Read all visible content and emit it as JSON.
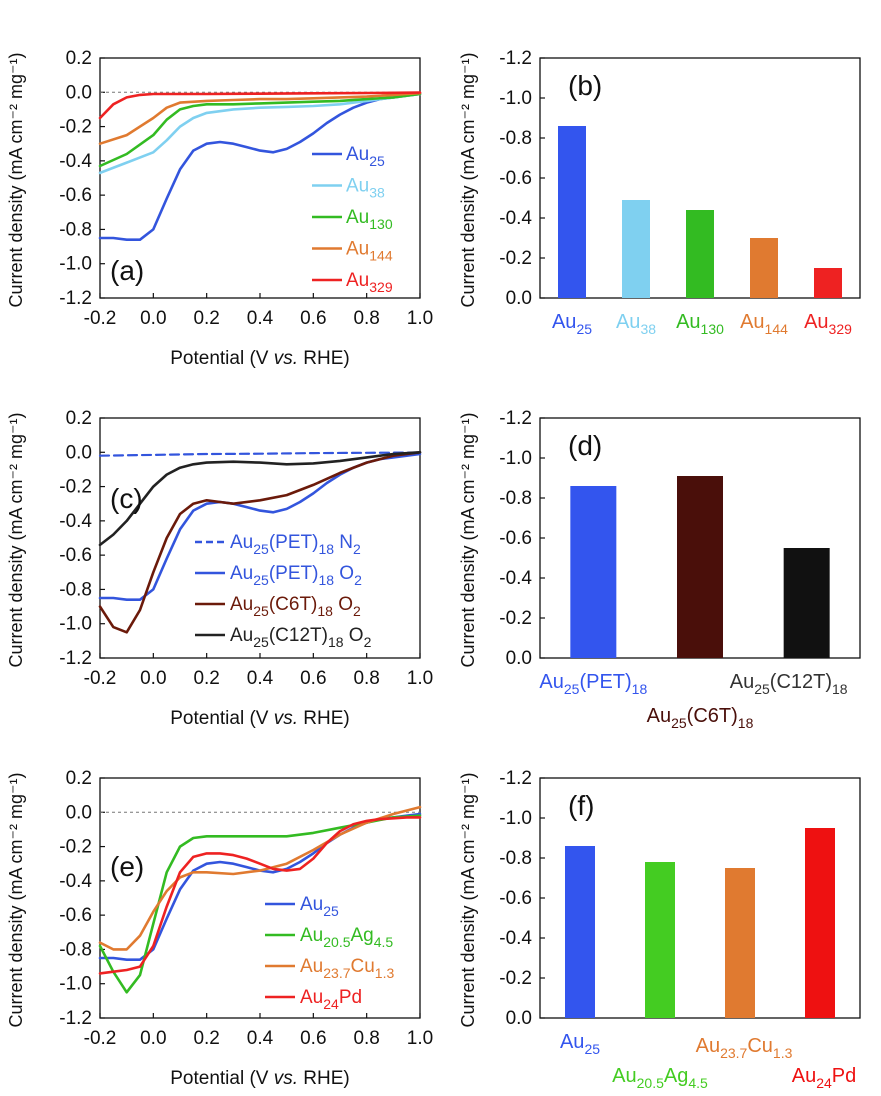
{
  "chart_data": [
    {
      "panel": "(a)",
      "type": "line",
      "xlabel": "Potential (V vs. RHE)",
      "xlabel_italic": "vs.",
      "ylabel": "Current density (mA cm⁻² mg⁻¹)",
      "xlim": [
        -0.2,
        1.0
      ],
      "ylim": [
        -1.2,
        0.2
      ],
      "xticks": [
        "-0.2",
        "0.0",
        "0.2",
        "0.4",
        "0.6",
        "0.8",
        "1.0"
      ],
      "yticks": [
        "0.2",
        "0.0",
        "-0.2",
        "-0.4",
        "-0.6",
        "-0.8",
        "-1.0",
        "-1.2"
      ],
      "zero_line": true,
      "series": [
        {
          "name": "Au",
          "sub": "25",
          "color": "#3355dd",
          "x": [
            -0.2,
            -0.15,
            -0.1,
            -0.05,
            0.0,
            0.05,
            0.1,
            0.15,
            0.2,
            0.25,
            0.3,
            0.35,
            0.4,
            0.45,
            0.5,
            0.55,
            0.6,
            0.65,
            0.7,
            0.75,
            0.8,
            0.85,
            0.9,
            0.95,
            1.0
          ],
          "y": [
            -0.85,
            -0.85,
            -0.86,
            -0.86,
            -0.8,
            -0.62,
            -0.45,
            -0.34,
            -0.3,
            -0.29,
            -0.3,
            -0.32,
            -0.34,
            -0.35,
            -0.33,
            -0.29,
            -0.24,
            -0.18,
            -0.13,
            -0.09,
            -0.06,
            -0.04,
            -0.03,
            -0.02,
            -0.01
          ]
        },
        {
          "name": "Au",
          "sub": "38",
          "color": "#7fd0f0",
          "x": [
            -0.2,
            -0.1,
            0.0,
            0.05,
            0.1,
            0.15,
            0.2,
            0.3,
            0.4,
            0.5,
            0.6,
            0.7,
            0.8,
            0.9,
            1.0
          ],
          "y": [
            -0.47,
            -0.41,
            -0.35,
            -0.28,
            -0.2,
            -0.15,
            -0.12,
            -0.1,
            -0.09,
            -0.085,
            -0.08,
            -0.07,
            -0.05,
            -0.03,
            -0.01
          ]
        },
        {
          "name": "Au",
          "sub": "130",
          "color": "#33bb22",
          "x": [
            -0.2,
            -0.1,
            0.0,
            0.05,
            0.1,
            0.15,
            0.2,
            0.3,
            0.4,
            0.5,
            0.6,
            0.7,
            0.8,
            0.9,
            1.0
          ],
          "y": [
            -0.43,
            -0.36,
            -0.25,
            -0.16,
            -0.1,
            -0.08,
            -0.07,
            -0.07,
            -0.065,
            -0.06,
            -0.055,
            -0.05,
            -0.04,
            -0.03,
            -0.01
          ]
        },
        {
          "name": "Au",
          "sub": "144",
          "color": "#e07a30",
          "x": [
            -0.2,
            -0.1,
            0.0,
            0.05,
            0.1,
            0.2,
            0.3,
            0.4,
            0.5,
            0.6,
            0.7,
            0.8,
            0.9,
            1.0
          ],
          "y": [
            -0.3,
            -0.25,
            -0.15,
            -0.09,
            -0.06,
            -0.05,
            -0.045,
            -0.04,
            -0.04,
            -0.035,
            -0.03,
            -0.025,
            -0.015,
            -0.005
          ]
        },
        {
          "name": "Au",
          "sub": "329",
          "color": "#ee2222",
          "x": [
            -0.2,
            -0.15,
            -0.1,
            -0.05,
            0.0,
            0.1,
            0.2,
            0.4,
            0.6,
            0.8,
            1.0
          ],
          "y": [
            -0.15,
            -0.07,
            -0.03,
            -0.015,
            -0.01,
            -0.01,
            -0.01,
            -0.008,
            -0.006,
            -0.004,
            -0.002
          ]
        }
      ]
    },
    {
      "panel": "(b)",
      "type": "bar",
      "ylabel": "Current density (mA cm⁻² mg⁻¹)",
      "ylim": [
        0.0,
        -1.2
      ],
      "yticks": [
        "-1.2",
        "-1.0",
        "-0.8",
        "-0.6",
        "-0.4",
        "-0.2",
        "0.0"
      ],
      "categories": [
        {
          "name": "Au",
          "sub": "25"
        },
        {
          "name": "Au",
          "sub": "38"
        },
        {
          "name": "Au",
          "sub": "130"
        },
        {
          "name": "Au",
          "sub": "144"
        },
        {
          "name": "Au",
          "sub": "329"
        }
      ],
      "colors": [
        "#3355ee",
        "#7fd0f0",
        "#33bb22",
        "#e07a30",
        "#ee2222"
      ],
      "values": [
        -0.86,
        -0.49,
        -0.44,
        -0.3,
        -0.15
      ]
    },
    {
      "panel": "(c)",
      "type": "line",
      "xlabel": "Potential (V vs. RHE)",
      "xlabel_italic": "vs.",
      "ylabel": "Current density (mA cm⁻² mg⁻¹)",
      "xlim": [
        -0.2,
        1.0
      ],
      "ylim": [
        -1.2,
        0.2
      ],
      "xticks": [
        "-0.2",
        "0.0",
        "0.2",
        "0.4",
        "0.6",
        "0.8",
        "1.0"
      ],
      "yticks": [
        "0.2",
        "0.0",
        "-0.2",
        "-0.4",
        "-0.6",
        "-0.8",
        "-1.0",
        "-1.2"
      ],
      "zero_line": false,
      "series": [
        {
          "name": "Au",
          "sub": "25",
          "suffix": "(PET)",
          "sub2": "18",
          "gas": "N",
          "gas_sub": "2",
          "color": "#3355dd",
          "dashed": true,
          "x": [
            -0.2,
            0.0,
            0.2,
            0.4,
            0.6,
            0.8,
            1.0
          ],
          "y": [
            -0.02,
            -0.015,
            -0.01,
            -0.008,
            -0.005,
            -0.003,
            -0.001
          ]
        },
        {
          "name": "Au",
          "sub": "25",
          "suffix": "(PET)",
          "sub2": "18",
          "gas": "O",
          "gas_sub": "2",
          "color": "#3355dd",
          "dashed": false,
          "x": [
            -0.2,
            -0.15,
            -0.1,
            -0.05,
            0.0,
            0.05,
            0.1,
            0.15,
            0.2,
            0.25,
            0.3,
            0.35,
            0.4,
            0.45,
            0.5,
            0.55,
            0.6,
            0.65,
            0.7,
            0.75,
            0.8,
            0.85,
            0.9,
            0.95,
            1.0
          ],
          "y": [
            -0.85,
            -0.85,
            -0.86,
            -0.86,
            -0.8,
            -0.62,
            -0.45,
            -0.34,
            -0.3,
            -0.29,
            -0.3,
            -0.32,
            -0.34,
            -0.35,
            -0.33,
            -0.29,
            -0.24,
            -0.18,
            -0.13,
            -0.09,
            -0.06,
            -0.04,
            -0.03,
            -0.02,
            -0.01
          ]
        },
        {
          "name": "Au",
          "sub": "25",
          "suffix": "(C6T)",
          "sub2": "18",
          "gas": "O",
          "gas_sub": "2",
          "color": "#6b1a0a",
          "dashed": false,
          "x": [
            -0.2,
            -0.15,
            -0.1,
            -0.05,
            0.0,
            0.05,
            0.1,
            0.15,
            0.2,
            0.25,
            0.3,
            0.4,
            0.5,
            0.6,
            0.7,
            0.8,
            0.9,
            1.0
          ],
          "y": [
            -0.9,
            -1.02,
            -1.05,
            -0.92,
            -0.7,
            -0.5,
            -0.36,
            -0.3,
            -0.28,
            -0.29,
            -0.3,
            -0.28,
            -0.25,
            -0.19,
            -0.12,
            -0.06,
            -0.02,
            0.0
          ]
        },
        {
          "name": "Au",
          "sub": "25",
          "suffix": "(C12T)",
          "sub2": "18",
          "gas": "O",
          "gas_sub": "2",
          "color": "#222222",
          "dashed": false,
          "x": [
            -0.2,
            -0.15,
            -0.1,
            -0.05,
            0.0,
            0.05,
            0.1,
            0.15,
            0.2,
            0.3,
            0.4,
            0.5,
            0.6,
            0.7,
            0.8,
            0.9,
            1.0
          ],
          "y": [
            -0.54,
            -0.48,
            -0.4,
            -0.3,
            -0.2,
            -0.13,
            -0.09,
            -0.07,
            -0.06,
            -0.055,
            -0.06,
            -0.07,
            -0.065,
            -0.05,
            -0.03,
            -0.01,
            0.0
          ]
        }
      ]
    },
    {
      "panel": "(d)",
      "type": "bar",
      "ylabel": "Current density (mA cm⁻² mg⁻¹)",
      "ylim": [
        0.0,
        -1.2
      ],
      "yticks": [
        "-1.2",
        "-1.0",
        "-0.8",
        "-0.6",
        "-0.4",
        "-0.2",
        "0.0"
      ],
      "categories": [
        {
          "name": "Au",
          "sub": "25",
          "suffix": "(PET)",
          "sub2": "18"
        },
        {
          "name": "Au",
          "sub": "25",
          "suffix": "(C6T)",
          "sub2": "18"
        },
        {
          "name": "Au",
          "sub": "25",
          "suffix": "(C12T)",
          "sub2": "18"
        }
      ],
      "colors": [
        "#3355ee",
        "#4a0f0a",
        "#111111"
      ],
      "values": [
        -0.86,
        -0.91,
        -0.55
      ]
    },
    {
      "panel": "(e)",
      "type": "line",
      "xlabel": "Potential (V vs. RHE)",
      "xlabel_italic": "vs.",
      "ylabel": "Current density (mA cm⁻² mg⁻¹)",
      "xlim": [
        -0.2,
        1.0
      ],
      "ylim": [
        -1.2,
        0.2
      ],
      "xticks": [
        "-0.2",
        "0.0",
        "0.2",
        "0.4",
        "0.6",
        "0.8",
        "1.0"
      ],
      "yticks": [
        "0.2",
        "0.0",
        "-0.2",
        "-0.4",
        "-0.6",
        "-0.8",
        "-1.0",
        "-1.2"
      ],
      "zero_line": true,
      "series": [
        {
          "name": "Au",
          "sub": "25",
          "color": "#3355dd",
          "x": [
            -0.2,
            -0.15,
            -0.1,
            -0.05,
            0.0,
            0.05,
            0.1,
            0.15,
            0.2,
            0.25,
            0.3,
            0.35,
            0.4,
            0.45,
            0.5,
            0.55,
            0.6,
            0.65,
            0.7,
            0.75,
            0.8,
            0.85,
            0.9,
            0.95,
            1.0
          ],
          "y": [
            -0.85,
            -0.85,
            -0.86,
            -0.86,
            -0.8,
            -0.62,
            -0.45,
            -0.34,
            -0.3,
            -0.29,
            -0.3,
            -0.32,
            -0.34,
            -0.35,
            -0.33,
            -0.29,
            -0.24,
            -0.18,
            -0.13,
            -0.09,
            -0.06,
            -0.04,
            -0.03,
            -0.02,
            -0.01
          ]
        },
        {
          "name": "Au",
          "sub": "20.5",
          "mid": "Ag",
          "sub2": "4.5",
          "color": "#33bb22",
          "x": [
            -0.2,
            -0.15,
            -0.1,
            -0.05,
            0.0,
            0.05,
            0.1,
            0.15,
            0.2,
            0.3,
            0.4,
            0.5,
            0.6,
            0.7,
            0.8,
            0.9,
            1.0
          ],
          "y": [
            -0.78,
            -0.93,
            -1.05,
            -0.95,
            -0.65,
            -0.35,
            -0.2,
            -0.15,
            -0.14,
            -0.14,
            -0.14,
            -0.14,
            -0.12,
            -0.09,
            -0.06,
            -0.03,
            -0.02
          ]
        },
        {
          "name": "Au",
          "sub": "23.7",
          "mid": "Cu",
          "sub2": "1.3",
          "color": "#e07a30",
          "x": [
            -0.2,
            -0.15,
            -0.1,
            -0.05,
            0.0,
            0.05,
            0.1,
            0.15,
            0.2,
            0.3,
            0.4,
            0.5,
            0.6,
            0.7,
            0.8,
            0.9,
            1.0
          ],
          "y": [
            -0.76,
            -0.8,
            -0.8,
            -0.72,
            -0.58,
            -0.46,
            -0.38,
            -0.35,
            -0.35,
            -0.36,
            -0.34,
            -0.3,
            -0.22,
            -0.13,
            -0.06,
            -0.01,
            0.03
          ]
        },
        {
          "name": "Au",
          "sub": "24",
          "mid": "Pd",
          "sub2": "",
          "color": "#ee2222",
          "x": [
            -0.2,
            -0.15,
            -0.1,
            -0.05,
            0.0,
            0.05,
            0.1,
            0.15,
            0.2,
            0.25,
            0.3,
            0.35,
            0.4,
            0.45,
            0.5,
            0.55,
            0.6,
            0.65,
            0.7,
            0.75,
            0.8,
            0.85,
            0.9,
            0.95,
            1.0
          ],
          "y": [
            -0.94,
            -0.93,
            -0.92,
            -0.9,
            -0.78,
            -0.55,
            -0.35,
            -0.26,
            -0.24,
            -0.24,
            -0.25,
            -0.27,
            -0.3,
            -0.33,
            -0.34,
            -0.33,
            -0.27,
            -0.18,
            -0.11,
            -0.07,
            -0.05,
            -0.04,
            -0.035,
            -0.03,
            -0.03
          ]
        }
      ]
    },
    {
      "panel": "(f)",
      "type": "bar",
      "ylabel": "Current density (mA cm⁻² mg⁻¹)",
      "ylim": [
        0.0,
        -1.2
      ],
      "yticks": [
        "-1.2",
        "-1.0",
        "-0.8",
        "-0.6",
        "-0.4",
        "-0.2",
        "0.0"
      ],
      "categories": [
        {
          "name": "Au",
          "sub": "25"
        },
        {
          "name": "Au",
          "sub": "20.5",
          "mid": "Ag",
          "sub2": "4.5"
        },
        {
          "name": "Au",
          "sub": "23.7",
          "mid": "Cu",
          "sub2": "1.3"
        },
        {
          "name": "Au",
          "sub": "24",
          "mid": "Pd",
          "sub2": ""
        }
      ],
      "colors": [
        "#3355ee",
        "#44cc22",
        "#e07a30",
        "#ee1111"
      ],
      "values": [
        -0.86,
        -0.78,
        -0.75,
        -0.95
      ]
    }
  ]
}
